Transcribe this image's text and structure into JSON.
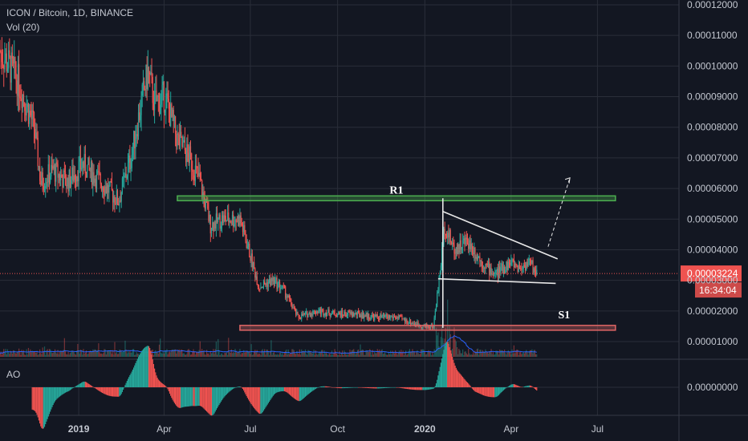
{
  "header": {
    "symbol_title": "ICON / Bitcoin, 1D, BINANCE",
    "volume_indicator": "Vol (20)",
    "oscillator_indicator": "AO"
  },
  "colors": {
    "background": "#131722",
    "grid": "#2a2e39",
    "axis_text": "#c3c7d0",
    "candle_up": "#26a69a",
    "candle_down": "#ef5350",
    "resistance": "#4caf50",
    "support": "#e06666",
    "pattern_lines": "#e8e8e8",
    "price_badge": "#ef5350",
    "vol_ma": "#2962ff"
  },
  "chart_data": {
    "type": "candlestick",
    "x_axis": {
      "tick_labels": [
        "2019",
        "Apr",
        "Jul",
        "Oct",
        "2020",
        "Apr",
        "Jul"
      ],
      "tick_dates": [
        "2019-01-01",
        "2019-04-01",
        "2019-07-01",
        "2019-10-01",
        "2020-01-01",
        "2020-04-01",
        "2020-07-01"
      ],
      "range": [
        "2018-10-10",
        "2020-09-25"
      ],
      "bold_labels": [
        "2019",
        "2020"
      ]
    },
    "y_axis": {
      "position": "right",
      "range": [
        7e-06,
        0.00012
      ],
      "tick_labels": [
        "0.00012000",
        "0.00011000",
        "0.00010000",
        "0.00009000",
        "0.00008000",
        "0.00007000",
        "0.00006000",
        "0.00005000",
        "0.00004000",
        "0.00003000",
        "0.00002000",
        "0.00001000"
      ],
      "tick_values": [
        0.00012,
        0.00011,
        0.0001,
        9e-05,
        8e-05,
        7e-05,
        6e-05,
        5e-05,
        4e-05,
        3e-05,
        2e-05,
        1e-05
      ]
    },
    "grid": true,
    "price_path": [
      [
        "2018-10-10",
        0.000105
      ],
      [
        "2018-10-28",
        9.6e-05
      ],
      [
        "2018-11-15",
        8e-05
      ],
      [
        "2018-11-22",
        6.2e-05
      ],
      [
        "2018-12-05",
        6.6e-05
      ],
      [
        "2018-12-20",
        6.2e-05
      ],
      [
        "2019-01-05",
        6.8e-05
      ],
      [
        "2019-01-25",
        6.2e-05
      ],
      [
        "2019-02-12",
        5.6e-05
      ],
      [
        "2019-02-25",
        7e-05
      ],
      [
        "2019-03-08",
        8.8e-05
      ],
      [
        "2019-03-15",
        9.8e-05
      ],
      [
        "2019-03-22",
        8.8e-05
      ],
      [
        "2019-04-02",
        9e-05
      ],
      [
        "2019-04-15",
        7.6e-05
      ],
      [
        "2019-04-28",
        7e-05
      ],
      [
        "2019-05-08",
        6.3e-05
      ],
      [
        "2019-05-20",
        4.8e-05
      ],
      [
        "2019-06-01",
        5e-05
      ],
      [
        "2019-06-20",
        5e-05
      ],
      [
        "2019-07-01",
        3.8e-05
      ],
      [
        "2019-07-10",
        2.8e-05
      ],
      [
        "2019-07-25",
        3e-05
      ],
      [
        "2019-08-05",
        2.7e-05
      ],
      [
        "2019-08-20",
        1.8e-05
      ],
      [
        "2019-09-10",
        2e-05
      ],
      [
        "2019-10-01",
        1.9e-05
      ],
      [
        "2019-10-20",
        1.9e-05
      ],
      [
        "2019-11-10",
        1.8e-05
      ],
      [
        "2019-12-01",
        1.8e-05
      ],
      [
        "2019-12-20",
        1.6e-05
      ],
      [
        "2020-01-01",
        1.5e-05
      ],
      [
        "2020-01-10",
        1.5e-05
      ],
      [
        "2020-01-16",
        3e-05
      ],
      [
        "2020-01-22",
        4.8e-05
      ],
      [
        "2020-02-01",
        4e-05
      ],
      [
        "2020-02-15",
        4.3e-05
      ],
      [
        "2020-03-01",
        3.6e-05
      ],
      [
        "2020-03-15",
        3.2e-05
      ],
      [
        "2020-04-01",
        3.6e-05
      ],
      [
        "2020-04-10",
        3.4e-05
      ],
      [
        "2020-04-20",
        3.6e-05
      ],
      [
        "2020-04-28",
        3.224e-05
      ]
    ],
    "last_price": {
      "value": 3.224e-05,
      "label": "0.00003224",
      "countdown": "16:34:04"
    },
    "annotations": [
      {
        "kind": "horizontal_zone",
        "name": "resistance",
        "label": "R1",
        "value": 5.68e-05,
        "from": "2019-04-15",
        "to": "2020-07-20"
      },
      {
        "kind": "horizontal_zone",
        "name": "support",
        "label": "S1",
        "value": 1.45e-05,
        "from": "2019-06-20",
        "to": "2020-07-20"
      },
      {
        "kind": "trend_line",
        "name": "triangle-upper",
        "from": [
          "2020-01-20",
          5.25e-05
        ],
        "to": [
          "2020-05-20",
          3.7e-05
        ]
      },
      {
        "kind": "trend_line",
        "name": "triangle-lower",
        "from": [
          "2020-01-15",
          3.05e-05
        ],
        "to": [
          "2020-05-18",
          2.9e-05
        ]
      },
      {
        "kind": "vertical_line",
        "name": "flagpole",
        "from": [
          "2020-01-20",
          1.45e-05
        ],
        "to": [
          "2020-01-20",
          5.68e-05
        ]
      },
      {
        "kind": "dashed_arrow",
        "name": "projection-arrow",
        "from": [
          "2020-05-10",
          4.1e-05
        ],
        "to": [
          "2020-06-02",
          6.35e-05
        ]
      }
    ],
    "ao": {
      "tick_label": "0.00000000",
      "value": 0
    }
  }
}
